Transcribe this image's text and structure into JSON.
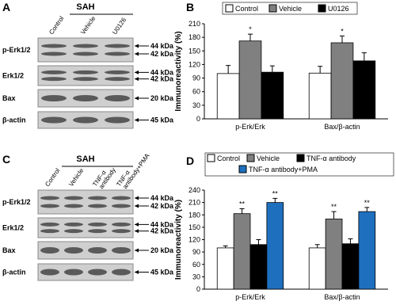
{
  "blots": [
    {
      "panel": "A",
      "group": "SAH",
      "lanes": [
        [
          "Control"
        ],
        [
          "Vehicle"
        ],
        [
          "U0126"
        ]
      ],
      "rows": [
        {
          "label": "p-Erk1/2",
          "sizes": [
            "44 kDa",
            "42 kDa"
          ]
        },
        {
          "label": "Erk1/2",
          "sizes": [
            "44 kDa",
            "42 kDa"
          ]
        },
        {
          "label": "Bax",
          "sizes": [
            "20 kDa"
          ]
        },
        {
          "label": "β-actin",
          "sizes": [
            "45 kDa"
          ]
        }
      ]
    },
    {
      "panel": "C",
      "group": "SAH",
      "lanes": [
        [
          "Control"
        ],
        [
          "Vehicle"
        ],
        [
          "TNF-α",
          "antibody"
        ],
        [
          "TNF-α",
          "antibody+PMA"
        ]
      ],
      "rows": [
        {
          "label": "p-Erk1/2",
          "sizes": [
            "44 kDa",
            "42 kDa"
          ]
        },
        {
          "label": "Erk1/2",
          "sizes": [
            "44 kDa",
            "42 kDa"
          ]
        },
        {
          "label": "Bax",
          "sizes": [
            "20 kDa"
          ]
        },
        {
          "label": "β-actin",
          "sizes": [
            "45 kDa"
          ]
        }
      ]
    }
  ],
  "chart_data": [
    {
      "type": "bar",
      "panel": "B",
      "y_label": "Immunoreactivity (%)",
      "categories": [
        "p-Erk/Erk",
        "Bax/β-actin"
      ],
      "series": [
        {
          "name": "Control",
          "color": "#ffffff",
          "values": [
            100,
            101
          ],
          "errors": [
            18,
            15
          ]
        },
        {
          "name": "Vehicle",
          "color": "#808080",
          "values": [
            172,
            168
          ],
          "errors": [
            15,
            15
          ],
          "significance": [
            "*",
            "*"
          ]
        },
        {
          "name": "U0126",
          "color": "#000000",
          "values": [
            103,
            128
          ],
          "errors": [
            14,
            18
          ]
        }
      ],
      "ylim": [
        0,
        210
      ],
      "yticks": [
        0,
        30,
        60,
        90,
        120,
        150,
        180,
        210
      ]
    },
    {
      "type": "bar",
      "panel": "D",
      "y_label": "Immunoreactivity (%)",
      "categories": [
        "p-Erk/Erk",
        "Bax/β-actin"
      ],
      "series": [
        {
          "name": "Control",
          "color": "#ffffff",
          "values": [
            100,
            100
          ],
          "errors": [
            5,
            8
          ]
        },
        {
          "name": "Vehicle",
          "color": "#808080",
          "values": [
            183,
            170
          ],
          "errors": [
            12,
            18
          ],
          "significance": [
            "**",
            "**"
          ]
        },
        {
          "name": "TNF-α antibody",
          "color": "#000000",
          "values": [
            108,
            110
          ],
          "errors": [
            12,
            12
          ]
        },
        {
          "name": "TNF-α antibody+PMA",
          "color": "#1f6fbf",
          "values": [
            210,
            188
          ],
          "errors": [
            10,
            10
          ],
          "significance": [
            "**",
            "**"
          ]
        }
      ],
      "ylim": [
        0,
        240
      ],
      "yticks": [
        0,
        30,
        60,
        90,
        120,
        150,
        180,
        210,
        240
      ]
    }
  ]
}
